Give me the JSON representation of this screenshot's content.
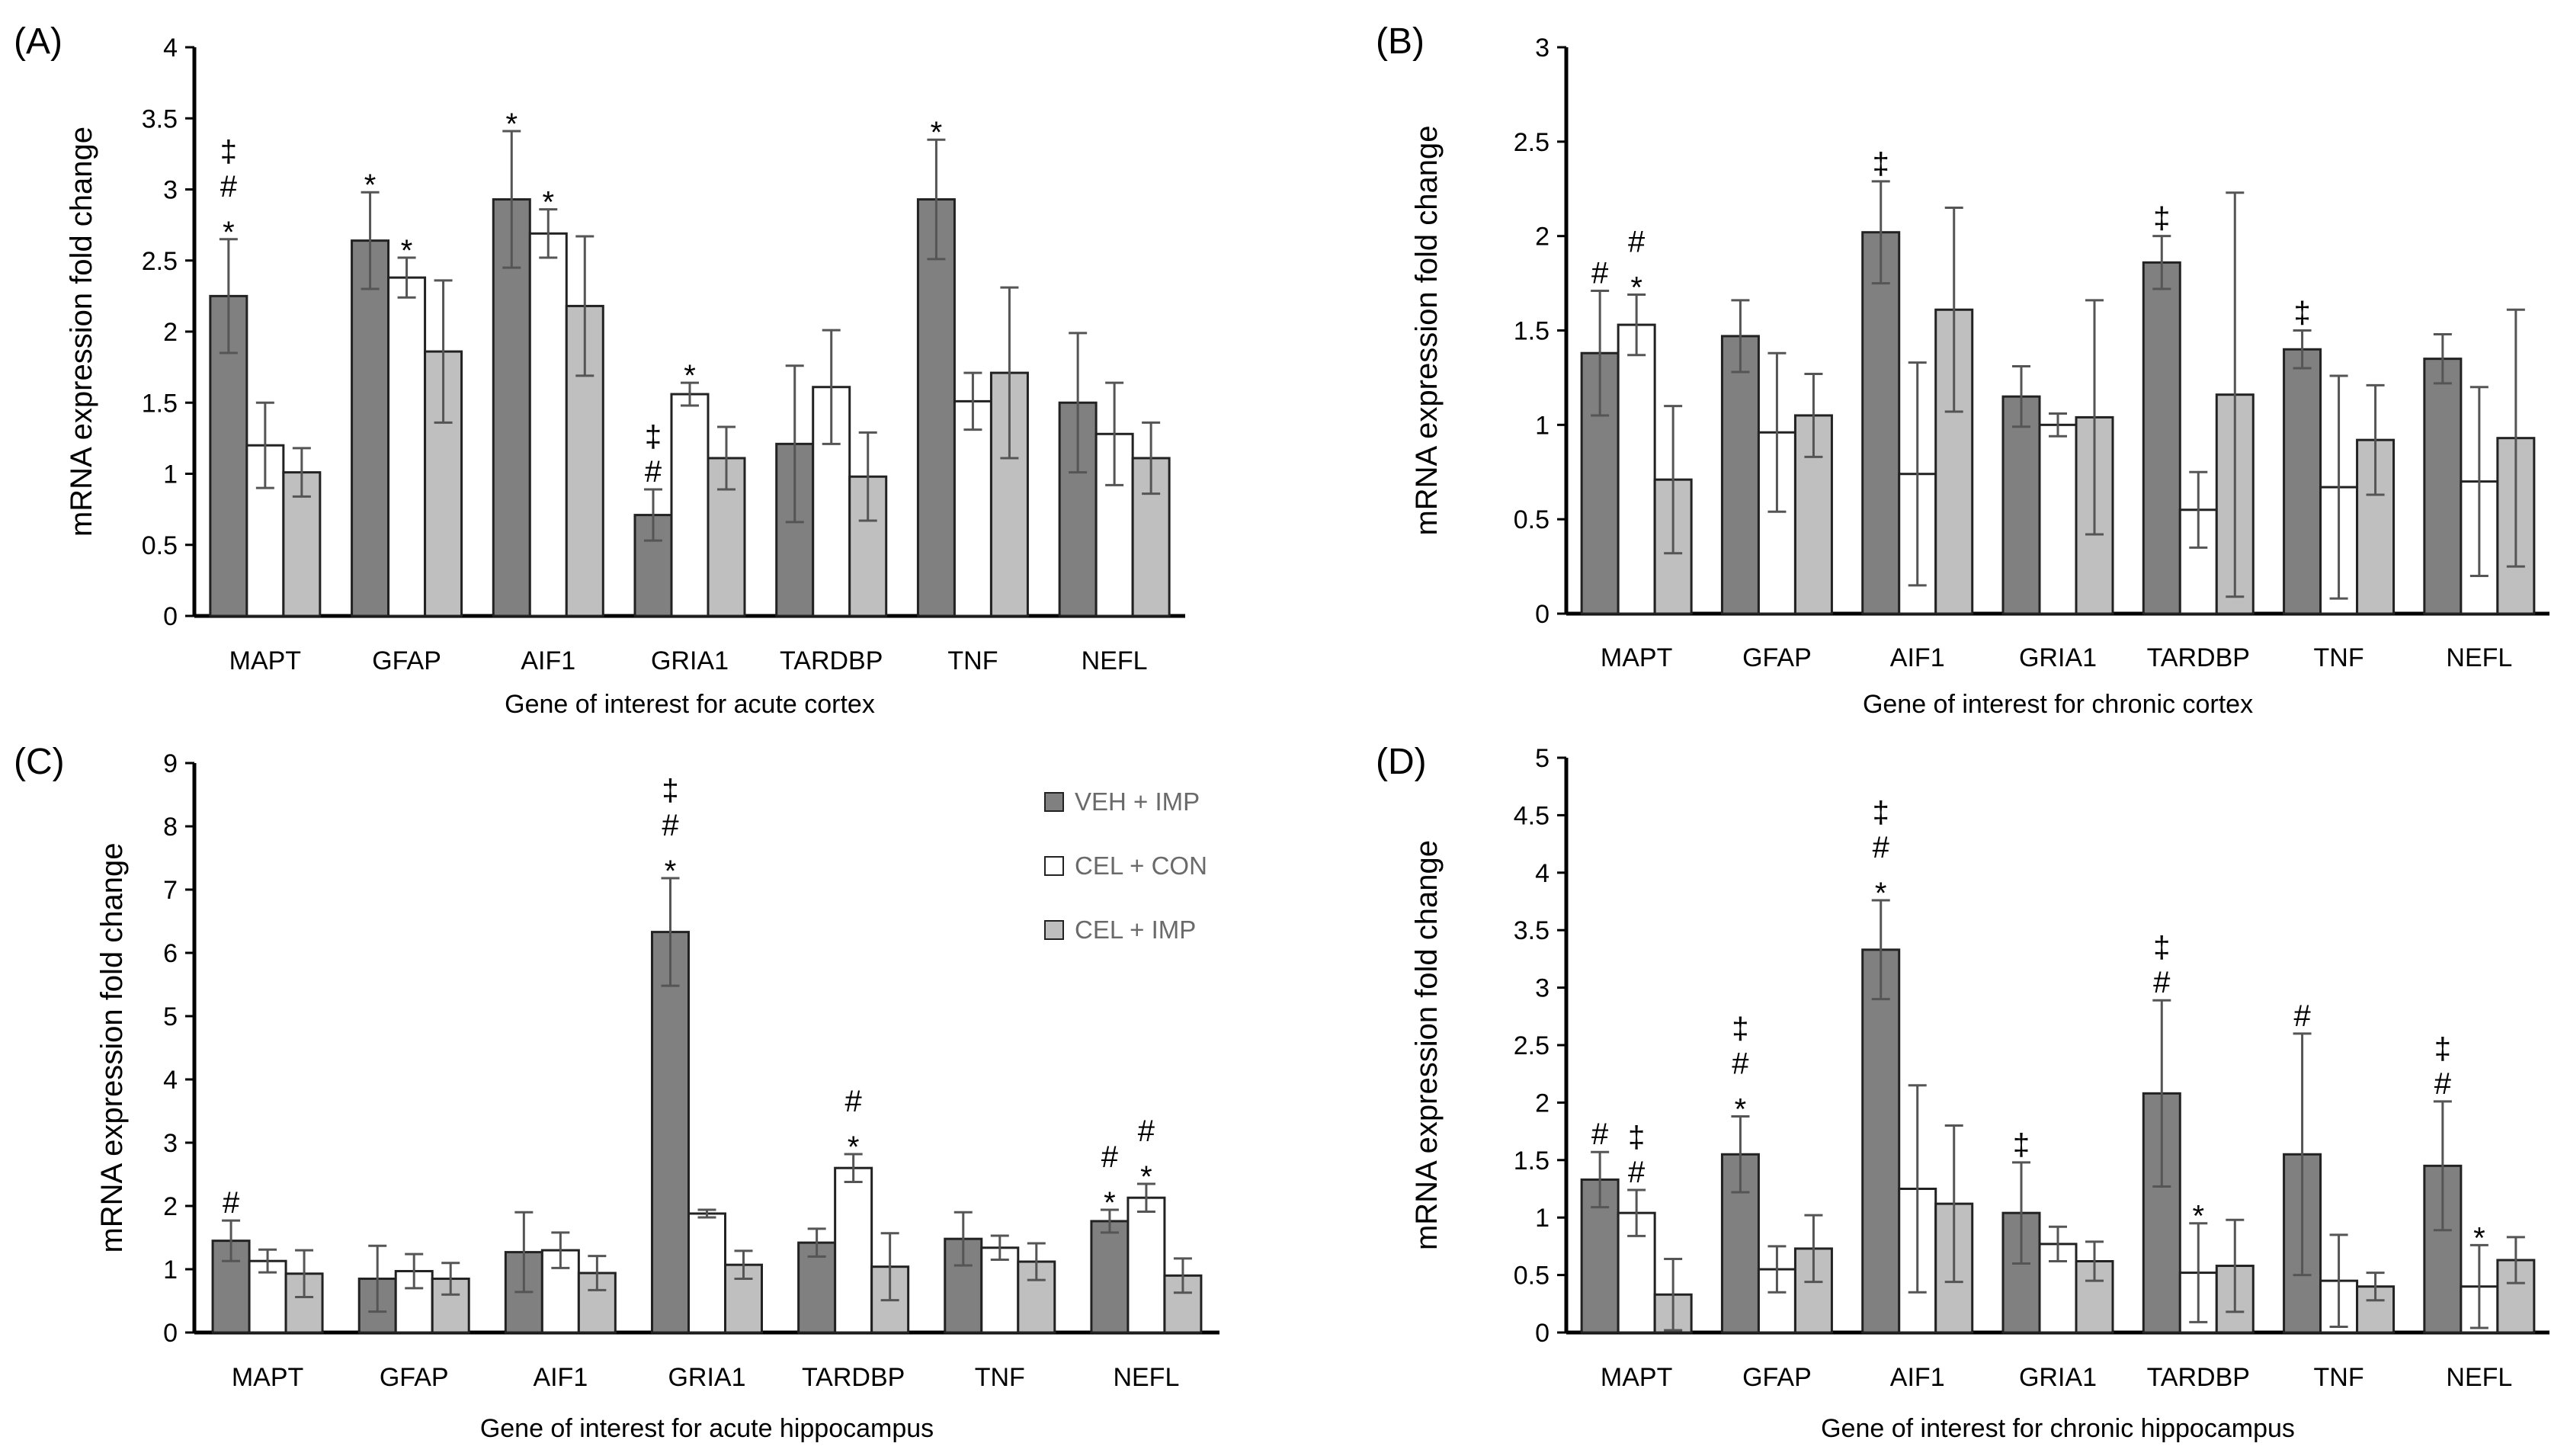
{
  "figure": {
    "legend": [
      {
        "name": "VEH + IMP",
        "color": "#808080"
      },
      {
        "name": "CEL + CON",
        "color": "#ffffff"
      },
      {
        "name": "CEL + IMP",
        "color": "#bfbfbf"
      }
    ],
    "symbols": {
      "asterisk": "*",
      "hash": "#",
      "dagger": "‡"
    }
  },
  "chart_data": [
    {
      "type": "bar",
      "panel_label": "(A)",
      "xlabel": "Gene of interest for acute cortex",
      "ylabel": "mRNA expression fold change",
      "ylim": [
        0,
        4
      ],
      "yticks": [
        "0",
        "0.5",
        "1",
        "1.5",
        "2",
        "2.5",
        "3",
        "3.5",
        "4"
      ],
      "categories": [
        "MAPT",
        "GFAP",
        "AIF1",
        "GRIA1",
        "TARDBP",
        "TNF",
        "NEFL"
      ],
      "series": [
        {
          "name": "VEH + IMP",
          "values": [
            2.25,
            2.64,
            2.93,
            0.71,
            1.21,
            2.93,
            1.5
          ],
          "errors": [
            0.4,
            0.34,
            0.48,
            0.18,
            0.55,
            0.42,
            0.49
          ]
        },
        {
          "name": "CEL + CON",
          "values": [
            1.2,
            2.38,
            2.69,
            1.56,
            1.61,
            1.51,
            1.28
          ],
          "errors": [
            0.3,
            0.14,
            0.17,
            0.08,
            0.4,
            0.2,
            0.36
          ]
        },
        {
          "name": "CEL + IMP",
          "values": [
            1.01,
            1.86,
            2.18,
            1.11,
            0.98,
            1.71,
            1.11
          ],
          "errors": [
            0.17,
            0.5,
            0.49,
            0.22,
            0.31,
            0.6,
            0.25
          ]
        }
      ],
      "annotations": [
        {
          "category": 0,
          "series": 0,
          "text": "* # ‡"
        },
        {
          "category": 1,
          "series": 0,
          "text": "*"
        },
        {
          "category": 1,
          "series": 1,
          "text": "*"
        },
        {
          "category": 2,
          "series": 0,
          "text": "*"
        },
        {
          "category": 2,
          "series": 1,
          "text": "*"
        },
        {
          "category": 3,
          "series": 0,
          "text": "# ‡"
        },
        {
          "category": 3,
          "series": 1,
          "text": "*"
        },
        {
          "category": 5,
          "series": 0,
          "text": "*"
        }
      ]
    },
    {
      "type": "bar",
      "panel_label": "(B)",
      "xlabel": "Gene of interest for chronic cortex",
      "ylabel": "mRNA expression fold change",
      "ylim": [
        0,
        3
      ],
      "yticks": [
        "0",
        "0.5",
        "1",
        "1.5",
        "2",
        "2.5",
        "3"
      ],
      "categories": [
        "MAPT",
        "GFAP",
        "AIF1",
        "GRIA1",
        "TARDBP",
        "TNF",
        "NEFL"
      ],
      "series": [
        {
          "name": "VEH + IMP",
          "values": [
            1.38,
            1.47,
            2.02,
            1.15,
            1.86,
            1.4,
            1.35
          ],
          "errors": [
            0.33,
            0.19,
            0.27,
            0.16,
            0.14,
            0.1,
            0.13
          ]
        },
        {
          "name": "CEL + CON",
          "values": [
            1.53,
            0.96,
            0.74,
            1.0,
            0.55,
            0.67,
            0.7
          ],
          "errors": [
            0.16,
            0.42,
            0.59,
            0.06,
            0.2,
            0.59,
            0.5
          ]
        },
        {
          "name": "CEL + IMP",
          "values": [
            0.71,
            1.05,
            1.61,
            1.04,
            1.16,
            0.92,
            0.93
          ],
          "errors": [
            0.39,
            0.22,
            0.54,
            0.62,
            1.07,
            0.29,
            0.68
          ]
        }
      ],
      "annotations": [
        {
          "category": 0,
          "series": 0,
          "text": "#"
        },
        {
          "category": 0,
          "series": 1,
          "text": "* #"
        },
        {
          "category": 2,
          "series": 0,
          "text": "‡"
        },
        {
          "category": 4,
          "series": 0,
          "text": "‡"
        },
        {
          "category": 5,
          "series": 0,
          "text": "‡"
        }
      ]
    },
    {
      "type": "bar",
      "panel_label": "(C)",
      "xlabel": "Gene of interest for acute hippocampus",
      "ylabel": "mRNA expression fold change",
      "ylim": [
        0,
        9
      ],
      "yticks": [
        "0",
        "1",
        "2",
        "3",
        "4",
        "5",
        "6",
        "7",
        "8",
        "9"
      ],
      "categories": [
        "MAPT",
        "GFAP",
        "AIF1",
        "GRIA1",
        "TARDBP",
        "TNF",
        "NEFL"
      ],
      "series": [
        {
          "name": "VEH + IMP",
          "values": [
            1.45,
            0.85,
            1.27,
            6.33,
            1.42,
            1.48,
            1.76
          ],
          "errors": [
            0.32,
            0.52,
            0.63,
            0.85,
            0.22,
            0.42,
            0.18
          ]
        },
        {
          "name": "CEL + CON",
          "values": [
            1.13,
            0.97,
            1.3,
            1.88,
            2.6,
            1.34,
            2.13
          ],
          "errors": [
            0.18,
            0.27,
            0.28,
            0.06,
            0.22,
            0.19,
            0.22
          ]
        },
        {
          "name": "CEL + IMP",
          "values": [
            0.93,
            0.85,
            0.94,
            1.07,
            1.04,
            1.12,
            0.9
          ],
          "errors": [
            0.37,
            0.25,
            0.27,
            0.22,
            0.53,
            0.29,
            0.27
          ]
        }
      ],
      "annotations": [
        {
          "category": 0,
          "series": 0,
          "text": "#"
        },
        {
          "category": 3,
          "series": 0,
          "text": "* # ‡"
        },
        {
          "category": 4,
          "series": 1,
          "text": "* #"
        },
        {
          "category": 6,
          "series": 0,
          "text": "* #"
        },
        {
          "category": 6,
          "series": 1,
          "text": "* #"
        }
      ]
    },
    {
      "type": "bar",
      "panel_label": "(D)",
      "xlabel": "Gene of interest for chronic hippocampus",
      "ylabel": "mRNA expression fold change",
      "ylim": [
        0,
        5
      ],
      "yticks": [
        "0",
        "0.5",
        "1",
        "1.5",
        "2",
        "2.5",
        "3",
        "3.5",
        "4",
        "4.5",
        "5"
      ],
      "categories": [
        "MAPT",
        "GFAP",
        "AIF1",
        "GRIA1",
        "TARDBP",
        "TNF",
        "NEFL"
      ],
      "series": [
        {
          "name": "VEH + IMP",
          "values": [
            1.33,
            1.55,
            3.33,
            1.04,
            2.08,
            1.55,
            1.45
          ],
          "errors": [
            0.24,
            0.33,
            0.43,
            0.44,
            0.81,
            1.05,
            0.56
          ]
        },
        {
          "name": "CEL + CON",
          "values": [
            1.04,
            0.55,
            1.25,
            0.77,
            0.52,
            0.45,
            0.4
          ],
          "errors": [
            0.2,
            0.2,
            0.9,
            0.15,
            0.43,
            0.4,
            0.36
          ]
        },
        {
          "name": "CEL + IMP",
          "values": [
            0.33,
            0.73,
            1.12,
            0.62,
            0.58,
            0.4,
            0.63
          ],
          "errors": [
            0.31,
            0.29,
            0.68,
            0.17,
            0.4,
            0.12,
            0.2
          ]
        }
      ],
      "annotations": [
        {
          "category": 0,
          "series": 0,
          "text": "#"
        },
        {
          "category": 0,
          "series": 1,
          "text": "# ‡"
        },
        {
          "category": 1,
          "series": 0,
          "text": "* # ‡"
        },
        {
          "category": 2,
          "series": 0,
          "text": "* # ‡"
        },
        {
          "category": 3,
          "series": 0,
          "text": "‡"
        },
        {
          "category": 4,
          "series": 0,
          "text": "# ‡"
        },
        {
          "category": 4,
          "series": 1,
          "text": "*"
        },
        {
          "category": 5,
          "series": 0,
          "text": "#"
        },
        {
          "category": 6,
          "series": 0,
          "text": "# ‡"
        },
        {
          "category": 6,
          "series": 1,
          "text": "*"
        }
      ]
    }
  ]
}
